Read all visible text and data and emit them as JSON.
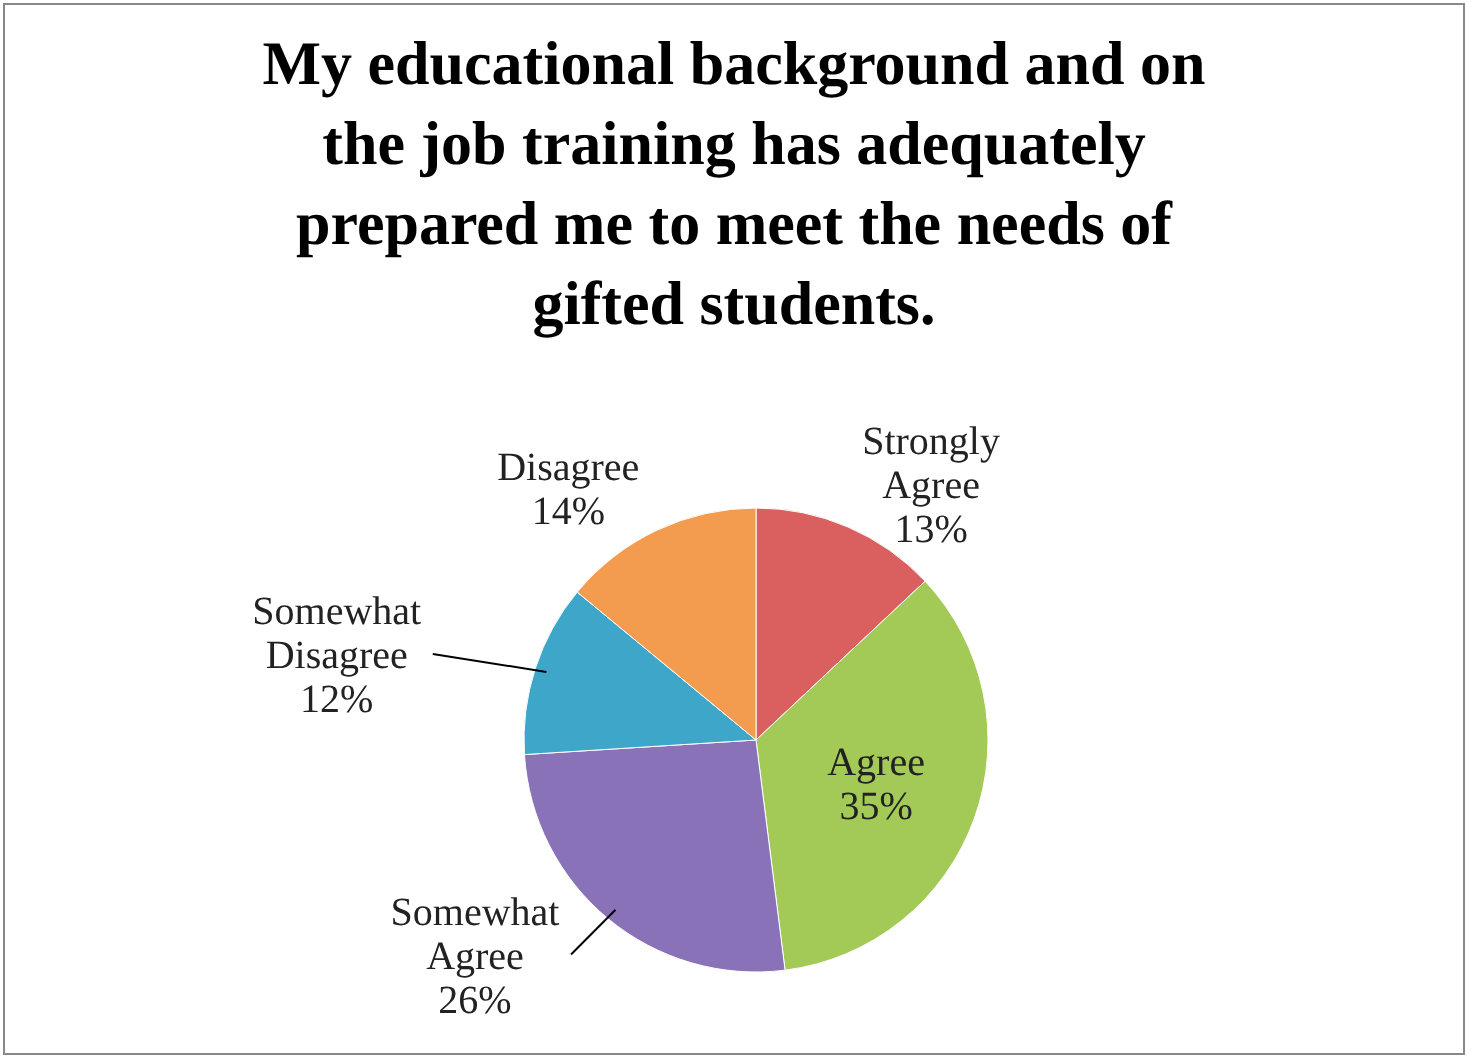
{
  "chart_data": {
    "type": "pie",
    "title": "My educational background and on the job training has adequately prepared me to meet the needs of gifted students.",
    "categories": [
      "Strongly Agree",
      "Agree",
      "Somewhat Agree",
      "Somewhat Disagree",
      "Disagree"
    ],
    "values": [
      13,
      35,
      26,
      12,
      14
    ],
    "value_labels": [
      "13%",
      "35%",
      "26%",
      "12%",
      "14%"
    ],
    "colors": [
      "#d9605e",
      "#a3c957",
      "#8a72b8",
      "#3ea6c9",
      "#f39c4f"
    ]
  }
}
